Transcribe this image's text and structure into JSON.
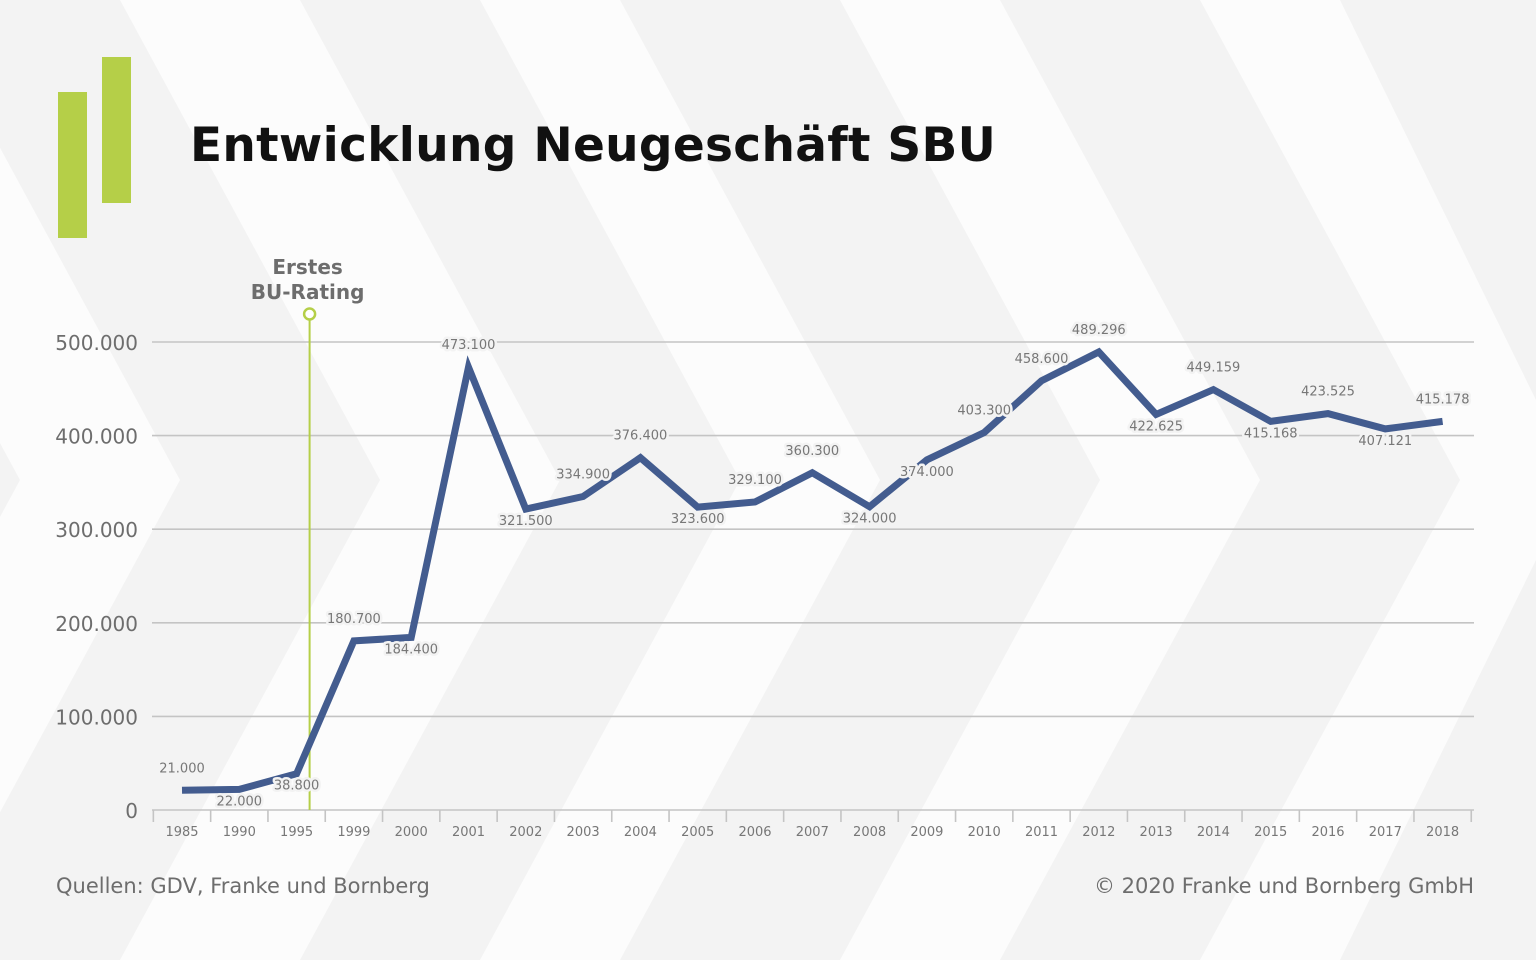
{
  "header": {
    "title": "Entwicklung Neugeschäft SBU"
  },
  "footer": {
    "source": "Quellen: GDV, Franke und Bornberg",
    "copyright": "© 2020 Franke und Bornberg GmbH"
  },
  "colors": {
    "line": "#435c8f",
    "accent": "#b5cf48",
    "grid": "#c4c4c4",
    "tick_text": "#777777"
  },
  "chart_data": {
    "type": "line",
    "categories": [
      "1985",
      "1990",
      "1995",
      "1999",
      "2000",
      "2001",
      "2002",
      "2003",
      "2004",
      "2005",
      "2006",
      "2007",
      "2008",
      "2009",
      "2010",
      "2011",
      "2012",
      "2013",
      "2014",
      "2015",
      "2016",
      "2017",
      "2018"
    ],
    "series": [
      {
        "values": [
          21000,
          22000,
          38800,
          180700,
          184400,
          473100,
          321500,
          334900,
          376400,
          323600,
          329100,
          360300,
          324000,
          374000,
          403300,
          458600,
          489296,
          422625,
          449159,
          415168,
          423525,
          407121,
          415178
        ]
      }
    ],
    "data_labels": [
      "21.000",
      "22.000",
      "38.800",
      "180.700",
      "184.400",
      "473.100",
      "321.500",
      "334.900",
      "376.400",
      "323.600",
      "329.100",
      "360.300",
      "324.000",
      "374.000",
      "403.300",
      "458.600",
      "489.296",
      "422.625",
      "449.159",
      "415.168",
      "423.525",
      "407.121",
      "415.178"
    ],
    "label_positions": [
      "above",
      "below",
      "below",
      "above",
      "below",
      "above",
      "below",
      "above",
      "above",
      "below",
      "above",
      "above",
      "below",
      "below",
      "above",
      "above",
      "above",
      "below",
      "above",
      "below",
      "above",
      "below",
      "above"
    ],
    "y_ticks": [
      0,
      100000,
      200000,
      300000,
      400000,
      500000
    ],
    "y_tick_labels": [
      "0",
      "100.000",
      "200.000",
      "300.000",
      "400.000",
      "500.000"
    ],
    "ylim": [
      0,
      500000
    ],
    "grid": true,
    "annotation": {
      "category": "1995",
      "lines": [
        "Erstes",
        "BU-Rating"
      ]
    },
    "xlabel": "",
    "ylabel": ""
  }
}
